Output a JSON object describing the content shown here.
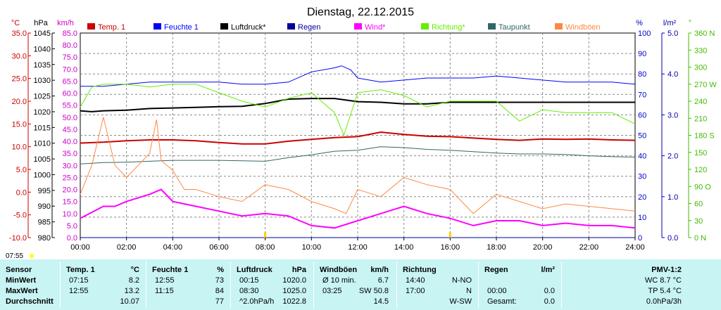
{
  "chart_data": {
    "type": "line",
    "title": "Dienstag, 22.12.2015",
    "x_ticks": [
      "00:00",
      "02:00",
      "04:00",
      "06:00",
      "08:00",
      "10:00",
      "12:00",
      "14:00",
      "16:00",
      "18:00",
      "20:00",
      "22:00",
      "24:00"
    ],
    "grid": true,
    "axes": {
      "temp": {
        "label": "°C",
        "color": "#cc0000",
        "min": -10,
        "max": 35,
        "ticks": [
          "35.0",
          "30.0",
          "25.0",
          "20.0",
          "15.0",
          "10.0",
          "5.0",
          "0.0",
          "-5.0",
          "-10.0"
        ]
      },
      "pressure": {
        "label": "hPa",
        "color": "#000000",
        "min": 980,
        "max": 1045,
        "ticks": [
          "1045",
          "1040",
          "1035",
          "1030",
          "1025",
          "1020",
          "1015",
          "1010",
          "1005",
          "1000",
          "995",
          "990",
          "985",
          "980"
        ]
      },
      "wind": {
        "label": "km/h",
        "color": "#cc00cc",
        "min": 0,
        "max": 85,
        "ticks": [
          "85.0",
          "80.0",
          "75.0",
          "70.0",
          "65.0",
          "60.0",
          "55.0",
          "50.0",
          "45.0",
          "40.0",
          "35.0",
          "30.0",
          "25.0",
          "20.0",
          "15.0",
          "10.0",
          "5.0",
          "0.0"
        ]
      },
      "humidity": {
        "label": "%",
        "color": "#0000cc",
        "min": 0,
        "max": 100,
        "ticks": [
          "100",
          "90",
          "80",
          "70",
          "60",
          "50",
          "40",
          "30",
          "20",
          "10",
          "0"
        ]
      },
      "rain": {
        "label": "l/m²",
        "color": "#0000aa",
        "min": 0,
        "max": 5,
        "ticks": [
          "5.0",
          "4.0",
          "3.0",
          "2.0",
          "1.0",
          "0.0"
        ]
      },
      "direction": {
        "label": "°",
        "color": "#44bb00",
        "min": 0,
        "max": 360,
        "ticks": [
          "360 N",
          "330",
          "300",
          "270 W",
          "240",
          "210",
          "180 S",
          "150",
          "120",
          "90 O",
          "60",
          "30",
          "0 N"
        ]
      }
    },
    "series": [
      {
        "name": "Temp. 1",
        "color": "#cc0000",
        "axis": "temp",
        "x": [
          0,
          1,
          2,
          3,
          4,
          5,
          6,
          7,
          8,
          9,
          10,
          11,
          12,
          13,
          14,
          15,
          16,
          17,
          18,
          19,
          20,
          21,
          22,
          23,
          24
        ],
        "y": [
          10.8,
          11.0,
          11.3,
          11.5,
          11.5,
          11.3,
          10.9,
          10.6,
          10.6,
          11.2,
          11.6,
          12.0,
          12.2,
          13.2,
          12.7,
          12.3,
          12.2,
          11.9,
          11.6,
          11.4,
          11.7,
          11.6,
          11.7,
          11.5,
          11.4
        ]
      },
      {
        "name": "Feuchte 1",
        "color": "#0000ff",
        "axis": "humidity",
        "x": [
          0,
          1,
          2,
          3,
          4,
          5,
          6,
          7,
          8,
          9,
          10,
          11,
          11.3,
          11.7,
          12,
          13,
          14,
          15,
          16,
          17,
          18,
          19,
          20,
          21,
          22,
          23,
          24
        ],
        "y": [
          74,
          74,
          75,
          76,
          76,
          76,
          76,
          75,
          75,
          76,
          81,
          83,
          84,
          82,
          78,
          76,
          77,
          78,
          78,
          78,
          79,
          78,
          77,
          76,
          76,
          76,
          75
        ]
      },
      {
        "name": "Luftdruck*",
        "color": "#000000",
        "axis": "pressure",
        "x": [
          0,
          0.5,
          1,
          2,
          3,
          4,
          5,
          6,
          7,
          8,
          9,
          10,
          11,
          12,
          13,
          14,
          15,
          16,
          17,
          18,
          19,
          20,
          21,
          22,
          23,
          24
        ],
        "y": [
          1020.3,
          1020.0,
          1020.3,
          1020.5,
          1021.0,
          1021.2,
          1021.4,
          1021.6,
          1021.7,
          1022.6,
          1024.0,
          1024.2,
          1024.2,
          1023.2,
          1023.0,
          1022.5,
          1022.5,
          1023.0,
          1023.0,
          1023.0,
          1023.0,
          1023.0,
          1023.0,
          1023.0,
          1023.0,
          1023.0
        ]
      },
      {
        "name": "Regen",
        "color": "#000099",
        "axis": "rain",
        "x": [
          0,
          24
        ],
        "y": [
          0,
          0
        ]
      },
      {
        "name": "Wind*",
        "color": "#ff00ff",
        "axis": "wind",
        "x": [
          0,
          1,
          1.5,
          2,
          3,
          3.5,
          4,
          5,
          6,
          7,
          8,
          9,
          10,
          11,
          12,
          13,
          14,
          15,
          16,
          17,
          18,
          19,
          20,
          21,
          22,
          23,
          24
        ],
        "y": [
          8,
          13,
          13,
          15,
          18,
          20,
          15,
          13,
          11,
          9,
          10,
          9,
          5,
          4,
          7,
          10,
          13,
          10,
          8,
          5,
          7,
          7,
          5,
          6,
          5,
          5,
          4
        ]
      },
      {
        "name": "Richtung*",
        "color": "#66ee00",
        "axis": "direction",
        "x": [
          0,
          0.5,
          1,
          2,
          3,
          4,
          5,
          6,
          7,
          8,
          9,
          10,
          11,
          11.4,
          12,
          13,
          14,
          15,
          16,
          17,
          18,
          19,
          20,
          21,
          22,
          23,
          24
        ],
        "y": [
          230,
          265,
          270,
          270,
          265,
          270,
          270,
          255,
          240,
          230,
          245,
          255,
          220,
          180,
          255,
          260,
          250,
          230,
          240,
          240,
          240,
          205,
          225,
          220,
          220,
          220,
          200
        ]
      },
      {
        "name": "Taupunkt",
        "color": "#336666",
        "axis": "temp",
        "x": [
          0,
          1,
          2,
          3,
          4,
          5,
          6,
          7,
          8,
          9,
          10,
          11,
          12,
          13,
          14,
          15,
          16,
          17,
          18,
          19,
          20,
          21,
          22,
          23,
          24
        ],
        "y": [
          6.2,
          6.5,
          6.6,
          6.8,
          7.0,
          7.0,
          7.0,
          6.9,
          6.8,
          7.6,
          8.2,
          9.0,
          9.2,
          10.0,
          9.8,
          9.4,
          9.2,
          8.9,
          8.6,
          8.4,
          8.4,
          8.3,
          8.0,
          7.8,
          7.7
        ]
      },
      {
        "name": "Windböen",
        "color": "#ff8844",
        "axis": "wind",
        "x": [
          0,
          0.5,
          1,
          1.5,
          2,
          2.5,
          3,
          3.3,
          3.5,
          4,
          4.5,
          5,
          6,
          7,
          8,
          9,
          10,
          11,
          11.5,
          12,
          13,
          14,
          15,
          16,
          17,
          18,
          19,
          20,
          21,
          22,
          23,
          24
        ],
        "y": [
          18,
          30,
          50,
          30,
          25,
          30,
          35,
          49,
          32,
          28,
          20,
          20,
          17,
          15,
          22,
          20,
          15,
          12,
          10,
          20,
          17,
          25,
          22,
          20,
          10,
          18,
          15,
          12,
          14,
          13,
          12,
          11
        ]
      }
    ]
  },
  "time_marker": "07:55",
  "table": {
    "sensor": {
      "header": "Sensor",
      "rows": [
        "MinWert",
        "MaxWert",
        "Durchschnitt"
      ]
    },
    "temp": {
      "header": "Temp. 1",
      "unit": "°C",
      "rows": [
        [
          "07:15",
          "8.2"
        ],
        [
          "12:55",
          "13.2"
        ],
        [
          "",
          "10.07"
        ]
      ]
    },
    "feuchte": {
      "header": "Feuchte 1",
      "unit": "%",
      "rows": [
        [
          "12:55",
          "73"
        ],
        [
          "11:15",
          "84"
        ],
        [
          "",
          "77"
        ]
      ]
    },
    "luftdruck": {
      "header": "Luftdruck",
      "unit": "hPa",
      "rows": [
        [
          "00:15",
          "1020.0"
        ],
        [
          "08:30",
          "1025.0"
        ],
        [
          "^2.0hPa/h",
          "1022.8"
        ]
      ]
    },
    "windboeen": {
      "header": "Windböen",
      "unit": "km/h",
      "rows": [
        [
          "Ø 10 min.",
          "6.7"
        ],
        [
          "03:25",
          "SW 50.8"
        ],
        [
          "",
          "14.5"
        ]
      ]
    },
    "richtung": {
      "header": "Richtung",
      "unit": "",
      "rows": [
        [
          "14:40",
          "N-NO"
        ],
        [
          "17:00",
          "N"
        ],
        [
          "",
          "W-SW"
        ]
      ]
    },
    "regen": {
      "header": "Regen",
      "unit": "l/m²",
      "rows": [
        [
          "",
          ""
        ],
        [
          "00:00",
          "0.0"
        ],
        [
          "Gesamt:",
          "0.0"
        ]
      ]
    },
    "pmv": {
      "header": "PMV-1:2",
      "rows": [
        "WC 8.7 °C",
        "TP 5.4 °C",
        "0.0hPa/3h"
      ]
    }
  }
}
